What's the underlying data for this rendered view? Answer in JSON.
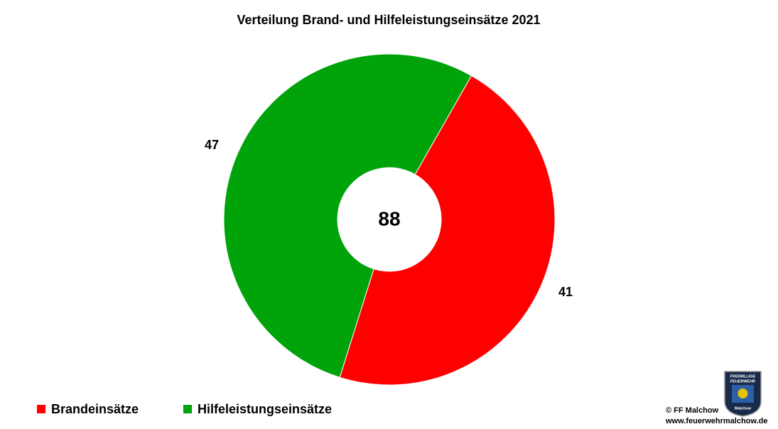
{
  "chart_data": {
    "type": "pie",
    "donut": true,
    "title": "Verteilung Brand- und Hilfeleistungseinsätze 2021",
    "categories": [
      "Brandeinsätze",
      "Hilfeleistungseinsätze"
    ],
    "values": [
      41,
      47
    ],
    "colors": [
      "#ff0000",
      "#00a30a"
    ],
    "total": 88
  },
  "footer": {
    "copyright": "© FF Malchow",
    "url": "www.feuerwehrmalchow.de",
    "logo": {
      "top": "FREIWILLIGE",
      "middle": "FEUERWEHR",
      "bottom": "Malchow"
    }
  }
}
